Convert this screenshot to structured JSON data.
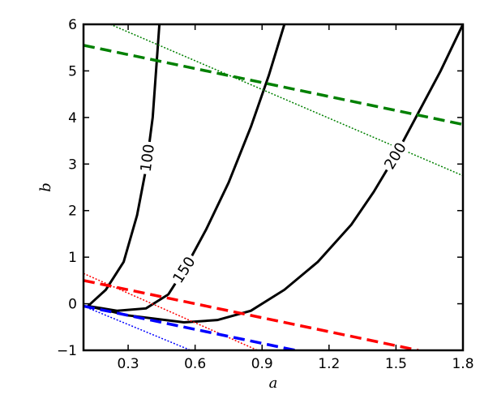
{
  "chart_data": {
    "type": "line",
    "x_label": "a",
    "y_label": "b",
    "xlim": [
      0.1,
      1.8
    ],
    "ylim": [
      -1,
      6
    ],
    "xticks": [
      0.3,
      0.6,
      0.9,
      1.2,
      1.5,
      1.8
    ],
    "yticks": [
      {
        "value": -1,
        "label": "−1"
      },
      0,
      1,
      2,
      3,
      4,
      5,
      6
    ],
    "series": [
      {
        "name": "100",
        "color": "#000000",
        "dash": "solid",
        "width": 3,
        "x": [
          0.12,
          0.2,
          0.28,
          0.34,
          0.38,
          0.41,
          0.44
        ],
        "values": [
          -0.05,
          0.3,
          0.9,
          1.9,
          2.9,
          4.0,
          6.0
        ]
      },
      {
        "name": "150",
        "color": "#000000",
        "dash": "solid",
        "width": 3,
        "x": [
          0.12,
          0.25,
          0.38,
          0.48,
          0.56,
          0.65,
          0.75,
          0.85,
          0.93,
          1.0
        ],
        "values": [
          -0.05,
          -0.15,
          -0.1,
          0.2,
          0.8,
          1.6,
          2.6,
          3.8,
          4.9,
          6.0
        ]
      },
      {
        "name": "200",
        "color": "#000000",
        "dash": "solid",
        "width": 3,
        "x": [
          0.12,
          0.3,
          0.55,
          0.7,
          0.85,
          1.0,
          1.15,
          1.3,
          1.4,
          1.5,
          1.6,
          1.7,
          1.8
        ],
        "values": [
          -0.05,
          -0.25,
          -0.4,
          -0.35,
          -0.15,
          0.3,
          0.9,
          1.7,
          2.4,
          3.2,
          4.1,
          5.0,
          6.0
        ]
      },
      {
        "color": "#008000",
        "dash": "dashed",
        "width": 3.5,
        "x": [
          0.1,
          1.8
        ],
        "values": [
          5.55,
          3.85
        ]
      },
      {
        "color": "#008000",
        "dash": "dotted",
        "width": 1.5,
        "x": [
          0.22,
          1.8
        ],
        "values": [
          6.0,
          2.75
        ]
      },
      {
        "color": "#ff0000",
        "dash": "dashed",
        "width": 3.5,
        "x": [
          0.1,
          1.6
        ],
        "values": [
          0.5,
          -1.0
        ]
      },
      {
        "color": "#ff0000",
        "dash": "dotted",
        "width": 1.5,
        "x": [
          0.1,
          0.88
        ],
        "values": [
          0.65,
          -1.0
        ]
      },
      {
        "color": "#0000ff",
        "dash": "dashed",
        "width": 3.5,
        "x": [
          0.1,
          1.05
        ],
        "values": [
          -0.05,
          -1.0
        ]
      },
      {
        "color": "#0000ff",
        "dash": "dotted",
        "width": 1.5,
        "x": [
          0.1,
          0.58
        ],
        "values": [
          -0.05,
          -1.0
        ]
      }
    ]
  }
}
